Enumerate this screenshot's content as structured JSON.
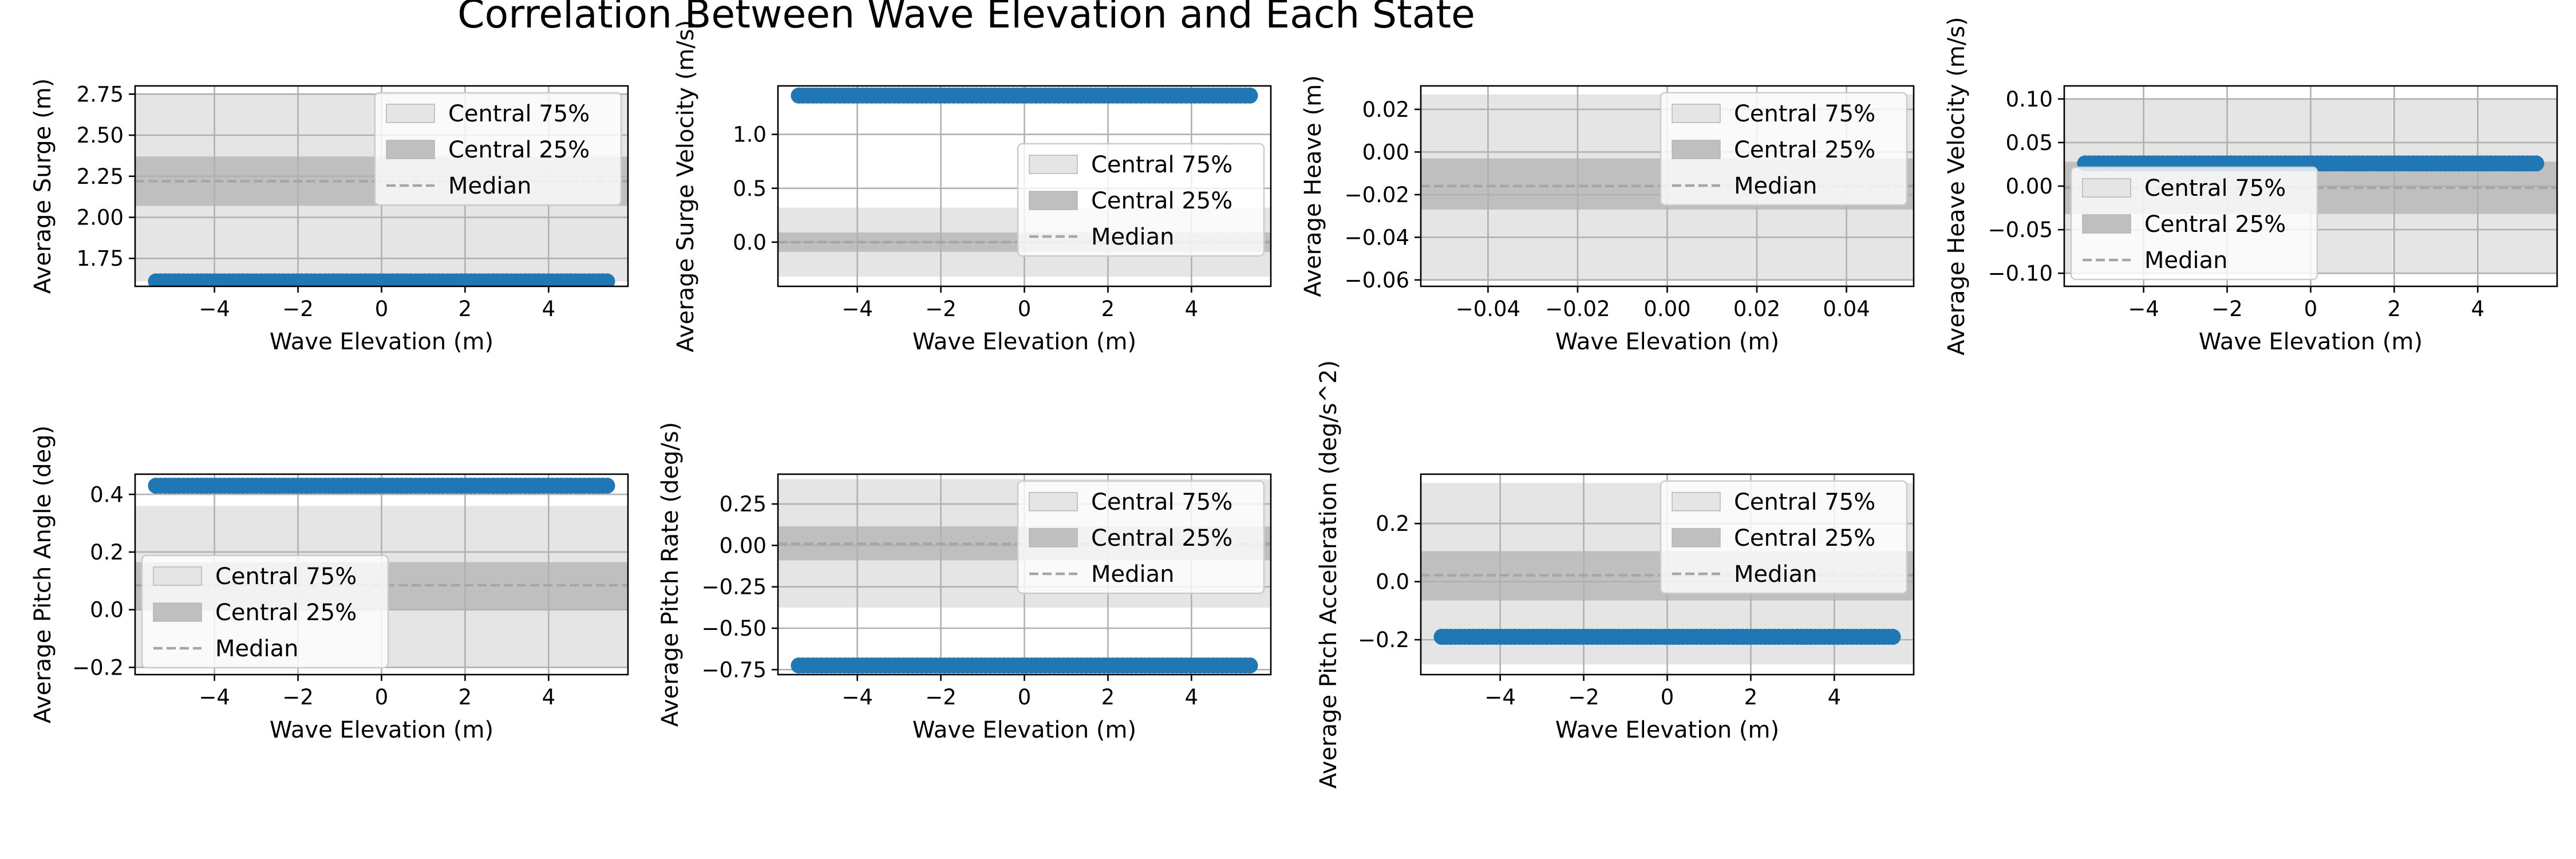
{
  "figure": {
    "title": "Correlation Between Wave Elevation and Each State"
  },
  "legend_labels": {
    "central75": "Central 75%",
    "central25": "Central 25%",
    "median": "Median"
  },
  "colors": {
    "scatter": "#1f77b4",
    "band75": "#e5e5e5",
    "band25": "#bfbfbf",
    "median_line": "#a6a6a6",
    "grid": "#b0b0b0"
  },
  "chart_data": [
    {
      "type": "scatter",
      "xlabel": "Wave Elevation (m)",
      "ylabel": "Average Surge (m)",
      "xlim": [
        -5.9,
        5.9
      ],
      "ylim": [
        1.58,
        2.8
      ],
      "xticks": [
        -4,
        -2,
        0,
        2,
        4
      ],
      "xtick_labels": [
        "−4",
        "−2",
        "0",
        "2",
        "4"
      ],
      "yticks": [
        1.75,
        2.0,
        2.25,
        2.5,
        2.75
      ],
      "ytick_labels": [
        "1.75",
        "2.00",
        "2.25",
        "2.50",
        "2.75"
      ],
      "x_range": [
        -5.4,
        5.4
      ],
      "y_value": 1.61,
      "band75": [
        1.61,
        2.75
      ],
      "band25": [
        2.07,
        2.37
      ],
      "median": 2.22,
      "grid": true,
      "legend_loc": "upper right"
    },
    {
      "type": "scatter",
      "xlabel": "Wave Elevation (m)",
      "ylabel": "Average Surge Velocity (m/s)",
      "xlim": [
        -5.9,
        5.9
      ],
      "ylim": [
        -0.41,
        1.45
      ],
      "xticks": [
        -4,
        -2,
        0,
        2,
        4
      ],
      "xtick_labels": [
        "−4",
        "−2",
        "0",
        "2",
        "4"
      ],
      "yticks": [
        0.0,
        0.5,
        1.0
      ],
      "ytick_labels": [
        "0.0",
        "0.5",
        "1.0"
      ],
      "x_range": [
        -5.4,
        5.4
      ],
      "y_value": 1.36,
      "band75": [
        -0.32,
        0.32
      ],
      "band25": [
        -0.09,
        0.09
      ],
      "median": 0.0,
      "grid": true,
      "legend_loc": "center right"
    },
    {
      "type": "scatter",
      "xlabel": "Wave Elevation (m)",
      "ylabel": "Average Heave (m)",
      "xlim": [
        -0.055,
        0.055
      ],
      "ylim": [
        -0.063,
        0.031
      ],
      "xticks": [
        -0.04,
        -0.02,
        0.0,
        0.02,
        0.04
      ],
      "xtick_labels": [
        "−0.04",
        "−0.02",
        "0.00",
        "0.02",
        "0.04"
      ],
      "yticks": [
        -0.06,
        -0.04,
        -0.02,
        0.0,
        0.02
      ],
      "ytick_labels": [
        "−0.06",
        "−0.04",
        "−0.02",
        "0.00",
        "0.02"
      ],
      "x_range": null,
      "y_value": null,
      "band75": [
        -0.06,
        0.027
      ],
      "band25": [
        -0.027,
        -0.003
      ],
      "median": -0.016,
      "grid": true,
      "legend_loc": "upper right"
    },
    {
      "type": "scatter",
      "xlabel": "Wave Elevation (m)",
      "ylabel": "Average Heave Velocity (m/s)",
      "xlim": [
        -5.9,
        5.9
      ],
      "ylim": [
        -0.115,
        0.115
      ],
      "xticks": [
        -4,
        -2,
        0,
        2,
        4
      ],
      "xtick_labels": [
        "−4",
        "−2",
        "0",
        "2",
        "4"
      ],
      "yticks": [
        -0.1,
        -0.05,
        0.0,
        0.05,
        0.1
      ],
      "ytick_labels": [
        "−0.10",
        "−0.05",
        "0.00",
        "0.05",
        "0.10"
      ],
      "x_range": [
        -5.4,
        5.4
      ],
      "y_value": 0.026,
      "band75": [
        -0.1,
        0.1
      ],
      "band25": [
        -0.032,
        0.028
      ],
      "median": -0.002,
      "grid": true,
      "legend_loc": "lower left"
    },
    {
      "type": "scatter",
      "xlabel": "Wave Elevation (m)",
      "ylabel": "Average Pitch Angle (deg)",
      "xlim": [
        -5.9,
        5.9
      ],
      "ylim": [
        -0.225,
        0.47
      ],
      "xticks": [
        -4,
        -2,
        0,
        2,
        4
      ],
      "xtick_labels": [
        "−4",
        "−2",
        "0",
        "2",
        "4"
      ],
      "yticks": [
        -0.2,
        0.0,
        0.2,
        0.4
      ],
      "ytick_labels": [
        "−0.2",
        "0.0",
        "0.2",
        "0.4"
      ],
      "x_range": [
        -5.4,
        5.4
      ],
      "y_value": 0.43,
      "band75": [
        -0.2,
        0.36
      ],
      "band25": [
        0.0,
        0.165
      ],
      "median": 0.085,
      "grid": true,
      "legend_loc": "lower left"
    },
    {
      "type": "scatter",
      "xlabel": "Wave Elevation (m)",
      "ylabel": "Average Pitch Rate (deg/s)",
      "xlim": [
        -5.9,
        5.9
      ],
      "ylim": [
        -0.78,
        0.43
      ],
      "xticks": [
        -4,
        -2,
        0,
        2,
        4
      ],
      "xtick_labels": [
        "−4",
        "−2",
        "0",
        "2",
        "4"
      ],
      "yticks": [
        -0.75,
        -0.5,
        -0.25,
        0.0,
        0.25
      ],
      "ytick_labels": [
        "−0.75",
        "−0.50",
        "−0.25",
        "0.00",
        "0.25"
      ],
      "x_range": [
        -5.4,
        5.4
      ],
      "y_value": -0.725,
      "band75": [
        -0.375,
        0.4
      ],
      "band25": [
        -0.09,
        0.115
      ],
      "median": 0.01,
      "grid": true,
      "legend_loc": "upper right"
    },
    {
      "type": "scatter",
      "xlabel": "Wave Elevation (m)",
      "ylabel": "Average Pitch Acceleration (deg/s^2)",
      "xlim": [
        -5.9,
        5.9
      ],
      "ylim": [
        -0.32,
        0.37
      ],
      "xticks": [
        -4,
        -2,
        0,
        2,
        4
      ],
      "xtick_labels": [
        "−4",
        "−2",
        "0",
        "2",
        "4"
      ],
      "yticks": [
        -0.2,
        0.0,
        0.2
      ],
      "ytick_labels": [
        "−0.2",
        "0.0",
        "0.2"
      ],
      "x_range": [
        -5.4,
        5.4
      ],
      "y_value": -0.19,
      "band75": [
        -0.285,
        0.34
      ],
      "band25": [
        -0.065,
        0.105
      ],
      "median": 0.022,
      "grid": true,
      "legend_loc": "upper right"
    }
  ]
}
